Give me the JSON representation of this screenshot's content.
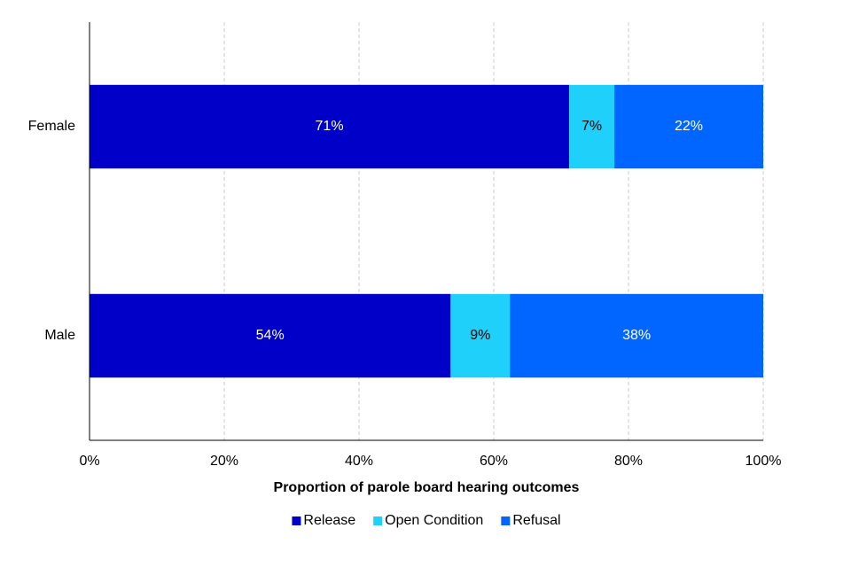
{
  "chart_data": {
    "type": "stacked-barh",
    "categories": [
      "Female",
      "Male"
    ],
    "series": [
      {
        "name": "Release",
        "color": "#0000c8",
        "label_color": "#ffffff",
        "values": [
          71.2,
          53.6
        ],
        "value_labels": [
          "71%",
          "54%"
        ]
      },
      {
        "name": "Open Condition",
        "color": "#1ed0fa",
        "label_color": "#000000",
        "values": [
          6.7,
          8.8
        ],
        "value_labels": [
          "7%",
          "9%"
        ]
      },
      {
        "name": "Refusal",
        "color": "#0066ff",
        "label_color": "#ffffff",
        "values": [
          22.1,
          37.6
        ],
        "value_labels": [
          "22%",
          "38%"
        ]
      }
    ],
    "xlabel": "Proportion of parole board hearing outcomes",
    "xlim": [
      0,
      100
    ],
    "xticks": [
      {
        "value": 0,
        "label": "0%"
      },
      {
        "value": 20,
        "label": "20%"
      },
      {
        "value": 40,
        "label": "40%"
      },
      {
        "value": 60,
        "label": "60%"
      },
      {
        "value": 80,
        "label": "80%"
      },
      {
        "value": 100,
        "label": "100%"
      }
    ],
    "grid": true,
    "legend": "bottom"
  }
}
